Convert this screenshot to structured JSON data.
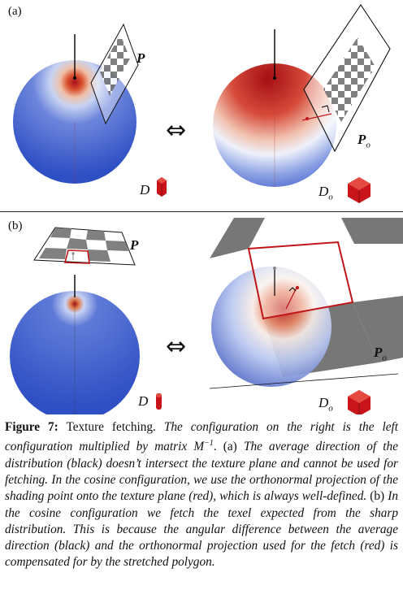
{
  "panels": {
    "a": {
      "label": "(a)",
      "left_plane_label": "P",
      "right_plane_label": "P",
      "right_plane_sub": "o",
      "left_dist_label": "D",
      "right_dist_label": "D",
      "right_dist_sub": "o",
      "equiv": "⇔"
    },
    "b": {
      "label": "(b)",
      "left_plane_label": "P",
      "right_plane_label": "P",
      "right_plane_sub": "o",
      "left_dist_label": "D",
      "right_dist_label": "D",
      "right_dist_sub": "o",
      "equiv": "⇔"
    }
  },
  "caption": {
    "head": "Figure 7:",
    "title": "Texture fetching.",
    "s1": "The configuration on the right is the left configuration multiplied by matrix",
    "matrix": "M",
    "matrix_sup": "−1",
    "period": ".",
    "a_tag": "(a)",
    "a_text": "The average direction of the distribution (black) doesn’t intersect the texture plane and cannot be used for fetching. In the cosine configuration, we use the orthonormal projection of the shading point onto the texture plane (red), which is always well-defined.",
    "b_tag": "(b)",
    "b_text": "In the cosine configuration we fetch the texel expected from the sharp distribution. This is because the angular difference between the average direction (black) and the orthonormal projection used for the fetch (red) is compensated for by the stretched polygon."
  },
  "colors": {
    "sphere_blue": "#2f4fc4",
    "hot_red": "#c01a14",
    "checker_dark": "#666666",
    "polygon_red": "#c0161a"
  }
}
